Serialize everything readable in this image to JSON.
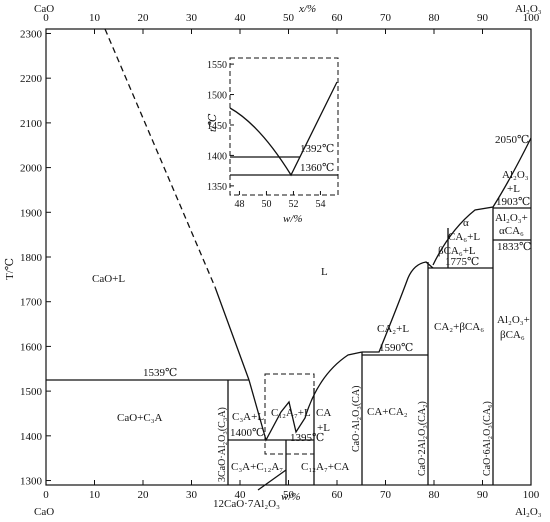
{
  "axes": {
    "top_left_component": "CaO",
    "top_right_component": "Al₂O₃",
    "top_axis_label": "x/%",
    "bottom_left_component": "CaO",
    "bottom_right_component": "Al₂O₃",
    "bottom_axis_label": "w/%",
    "y_axis_label": "T/℃",
    "x_ticks": [
      "0",
      "10",
      "20",
      "30",
      "40",
      "50",
      "60",
      "70",
      "80",
      "90",
      "100"
    ],
    "y_ticks": [
      "1300",
      "1400",
      "1500",
      "1600",
      "1700",
      "1800",
      "1900",
      "2000",
      "2100",
      "2200",
      "2300"
    ],
    "x_range": [
      0,
      100
    ],
    "y_range": [
      1290,
      2310
    ]
  },
  "phase_labels": {
    "cao_l": "CaO+L",
    "liquid": "L",
    "cao_c3a": "CaO+C₃A",
    "c3a_l": "C₃A+L",
    "c12a7_l": "C₁₂A₇+L",
    "ca_l_top": "CA",
    "ca_l_bottom": "+L",
    "c3a_c12a7": "C₃A+C₁₂A₇",
    "c12a7_ca": "C₁₂A₇+CA",
    "ca2_l": "CA₂+L",
    "ca_ca2": "CA+CA₂",
    "ca2_bca6": "CA₂+βCA₆",
    "alpha": "α",
    "ca6_l": "CA₆+L",
    "bca6_l": "βCA₆+L",
    "al2o3_l_1": "Al₂O₃",
    "al2o3_l_2": "+L",
    "al2o3_aca6_1": "Al₂O₃+",
    "al2o3_aca6_2": "αCA₆",
    "al2o3_bca6_1": "Al₂O₃+",
    "al2o3_bca6_2": "βCA₆"
  },
  "compound_labels": {
    "c3a": "3CaO·Al₂O₃(C₃A)",
    "ca": "CaO·Al₂O₃(CA)",
    "ca2": "CaO·2Al₂O₃(CA₂)",
    "ca6": "CaO·6Al₂O₃(CA₆)",
    "c12a7": "12CaO·7Al₂O₃"
  },
  "temperatures": {
    "t1539": "1539℃",
    "t1400": "1400℃",
    "t1395": "1395℃",
    "t1590": "1590℃",
    "t1775": "1775℃",
    "t1833": "1833℃",
    "t1903": "1903℃",
    "t2050": "2050℃"
  },
  "inset": {
    "y_label": "t/℃",
    "x_label": "w/%",
    "y_ticks": [
      "1350",
      "1400",
      "1450",
      "1500",
      "1550"
    ],
    "x_ticks": [
      "48",
      "50",
      "52",
      "54"
    ],
    "y_range": [
      1335,
      1560
    ],
    "x_range": [
      47.3,
      55.3
    ],
    "t1392": "1392℃",
    "t1360": "1360℃"
  }
}
